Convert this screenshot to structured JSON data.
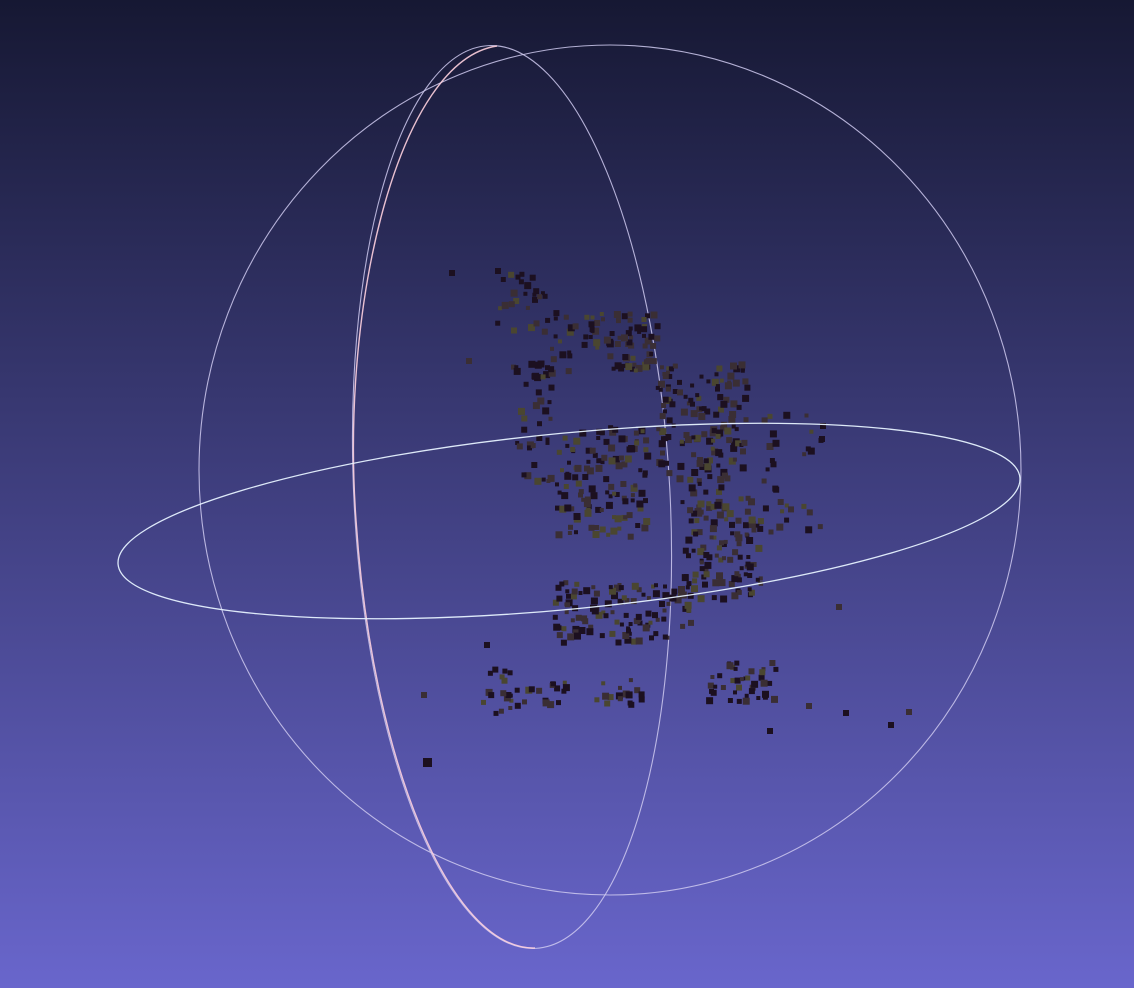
{
  "viewport": {
    "background_top": "#161833",
    "background_bottom": "#6966cc",
    "trackball_colors": {
      "equator_ring": "#e6f2ff",
      "meridian_ring_front": "#ffd1df",
      "meridian_ring_back": "#cfcaf0",
      "outline_ring": "#cfcaf0"
    },
    "point_color_dark": "#1c1020",
    "point_color_mid": "#3a2e34",
    "point_color_olive": "#4a4630"
  }
}
